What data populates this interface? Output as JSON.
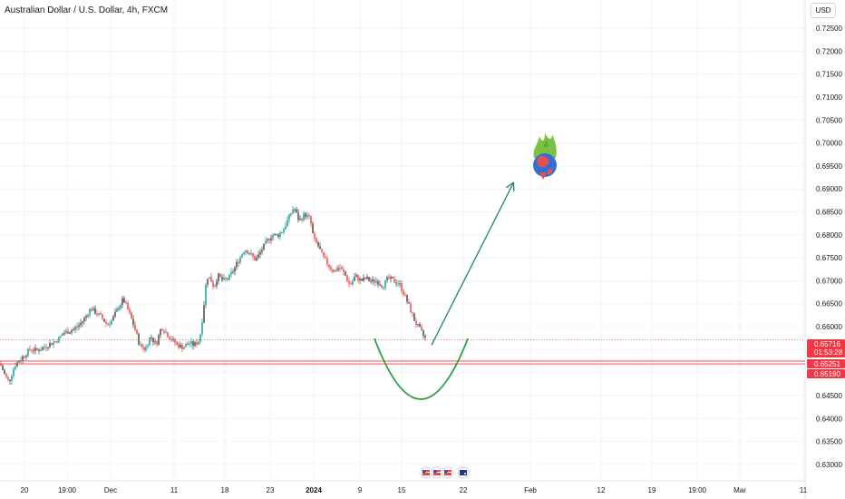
{
  "header": {
    "title": "Australian Dollar / U.S. Dollar, 4h, FXCM",
    "currency_label": "USD"
  },
  "colors": {
    "up": "#26a69a",
    "down": "#ef5350",
    "candle_dark": "#555555",
    "level_line": "#f23645",
    "arrow": "#1b8a5a",
    "curve": "#2f9e44",
    "grid": "#f0f3fa"
  },
  "chart_data": {
    "type": "candlestick",
    "symbol": "AUDUSD",
    "interval": "4h",
    "y_axis": {
      "ticks": [
        "0.72500",
        "0.72000",
        "0.71500",
        "0.71000",
        "0.70500",
        "0.70000",
        "0.69500",
        "0.69000",
        "0.68500",
        "0.68000",
        "0.67500",
        "0.67000",
        "0.66500",
        "0.66000",
        "0.65500",
        "0.65000",
        "0.64500",
        "0.64000",
        "0.63500",
        "0.63000"
      ],
      "range": [
        0.6282,
        0.7262
      ]
    },
    "x_axis": {
      "ticks": [
        "20",
        "19:00",
        "Dec",
        "11",
        "18",
        "23",
        "2024",
        "9",
        "15",
        "22",
        "Feb",
        "12",
        "19",
        "19:00",
        "Mar",
        "11"
      ]
    },
    "price_tags": [
      {
        "value": "0.65716",
        "sub": "01:53:28",
        "price": 0.65716
      },
      {
        "value": "0.65251",
        "price": 0.65251
      },
      {
        "value": "0.65190",
        "price": 0.6519
      }
    ],
    "levels": [
      0.65251,
      0.6519
    ],
    "last_price": 0.65716,
    "price_path": [
      [
        0,
        0.652
      ],
      [
        6,
        0.6492
      ],
      [
        10,
        0.648
      ],
      [
        16,
        0.6515
      ],
      [
        22,
        0.6528
      ],
      [
        28,
        0.654
      ],
      [
        34,
        0.6552
      ],
      [
        40,
        0.6548
      ],
      [
        46,
        0.6552
      ],
      [
        52,
        0.656
      ],
      [
        58,
        0.6565
      ],
      [
        64,
        0.6572
      ],
      [
        70,
        0.6586
      ],
      [
        76,
        0.659
      ],
      [
        82,
        0.6595
      ],
      [
        88,
        0.6605
      ],
      [
        94,
        0.662
      ],
      [
        100,
        0.664
      ],
      [
        106,
        0.663
      ],
      [
        112,
        0.662
      ],
      [
        118,
        0.6605
      ],
      [
        124,
        0.6615
      ],
      [
        130,
        0.664
      ],
      [
        136,
        0.666
      ],
      [
        142,
        0.6632
      ],
      [
        148,
        0.66
      ],
      [
        154,
        0.656
      ],
      [
        160,
        0.655
      ],
      [
        166,
        0.658
      ],
      [
        172,
        0.656
      ],
      [
        178,
        0.66
      ],
      [
        184,
        0.6585
      ],
      [
        190,
        0.657
      ],
      [
        196,
        0.656
      ],
      [
        202,
        0.6555
      ],
      [
        208,
        0.6565
      ],
      [
        214,
        0.656
      ],
      [
        220,
        0.657
      ],
      [
        224,
        0.663
      ],
      [
        228,
        0.671
      ],
      [
        232,
        0.6705
      ],
      [
        236,
        0.6685
      ],
      [
        240,
        0.6712
      ],
      [
        246,
        0.67
      ],
      [
        252,
        0.6705
      ],
      [
        258,
        0.6725
      ],
      [
        264,
        0.6748
      ],
      [
        270,
        0.677
      ],
      [
        276,
        0.6758
      ],
      [
        282,
        0.6745
      ],
      [
        288,
        0.6765
      ],
      [
        294,
        0.6785
      ],
      [
        300,
        0.68
      ],
      [
        306,
        0.6798
      ],
      [
        312,
        0.681
      ],
      [
        318,
        0.6835
      ],
      [
        324,
        0.686
      ],
      [
        330,
        0.683
      ],
      [
        336,
        0.6845
      ],
      [
        342,
        0.6835
      ],
      [
        346,
        0.679
      ],
      [
        350,
        0.678
      ],
      [
        356,
        0.6752
      ],
      [
        362,
        0.6735
      ],
      [
        368,
        0.672
      ],
      [
        374,
        0.673
      ],
      [
        380,
        0.6715
      ],
      [
        386,
        0.669
      ],
      [
        392,
        0.671
      ],
      [
        398,
        0.67
      ],
      [
        404,
        0.6705
      ],
      [
        410,
        0.6698
      ],
      [
        416,
        0.67
      ],
      [
        422,
        0.6688
      ],
      [
        428,
        0.6705
      ],
      [
        434,
        0.67
      ],
      [
        440,
        0.6695
      ],
      [
        446,
        0.667
      ],
      [
        452,
        0.664
      ],
      [
        458,
        0.661
      ],
      [
        464,
        0.659
      ],
      [
        470,
        0.65716
      ]
    ],
    "projection": {
      "arrow": {
        "from": [
          476,
          0.656
        ],
        "to": [
          566,
          0.6912
        ]
      },
      "curve": [
        [
          413,
          0.6574
        ],
        [
          464,
          0.6442
        ],
        [
          516,
          0.6574
        ]
      ]
    }
  }
}
